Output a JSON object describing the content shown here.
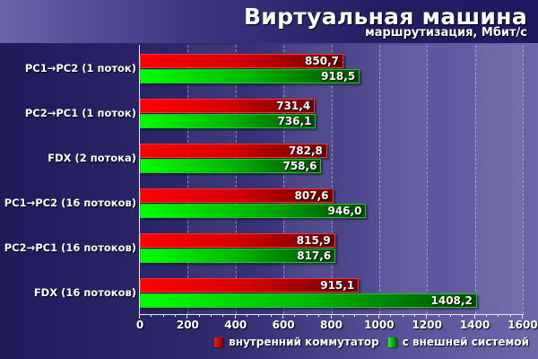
{
  "header": {
    "title": "Виртуальная машина",
    "subtitle": "маршрутизация, Мбит/с"
  },
  "colors": {
    "series_internal": "#e00000",
    "series_external": "#00d000",
    "background_dark": "#1f1a5a",
    "background_light": "#6e68aa"
  },
  "axis": {
    "ticks": [
      "0",
      "200",
      "400",
      "600",
      "800",
      "1000",
      "1200",
      "1400",
      "1600"
    ]
  },
  "categories": [
    {
      "label": "PC1→PC2 (1 поток)",
      "internal": "850,7",
      "external": "918,5"
    },
    {
      "label": "PC2→PC1 (1 поток)",
      "internal": "731,4",
      "external": "736,1"
    },
    {
      "label": "FDX (2 потока)",
      "internal": "782,8",
      "external": "758,6"
    },
    {
      "label": "PC1→PC2 (16 потоков)",
      "internal": "807,6",
      "external": "946,0"
    },
    {
      "label": "PC2→PC1 (16 потоков)",
      "internal": "815,9",
      "external": "817,6"
    },
    {
      "label": "FDX (16 потоков)",
      "internal": "915,1",
      "external": "1408,2"
    }
  ],
  "legend": {
    "internal": "внутренний коммутатор",
    "external": "с внешней системой"
  },
  "chart_data": {
    "type": "bar",
    "orientation": "horizontal",
    "title": "Виртуальная машина",
    "subtitle": "маршрутизация, Мбит/с",
    "xlabel": "",
    "ylabel": "",
    "xlim": [
      0,
      1600
    ],
    "xticks": [
      0,
      200,
      400,
      600,
      800,
      1000,
      1200,
      1400,
      1600
    ],
    "grid": "vertical dashed",
    "legend_position": "bottom-right",
    "categories": [
      "PC1→PC2 (1 поток)",
      "PC2→PC1 (1 поток)",
      "FDX (2 потока)",
      "PC1→PC2 (16 потоков)",
      "PC2→PC1 (16 потоков)",
      "FDX (16 потоков)"
    ],
    "series": [
      {
        "name": "внутренний коммутатор",
        "color": "#e00000",
        "values": [
          850.7,
          731.4,
          782.8,
          807.6,
          815.9,
          915.1
        ]
      },
      {
        "name": "с внешней системой",
        "color": "#00d000",
        "values": [
          918.5,
          736.1,
          758.6,
          946.0,
          817.6,
          1408.2
        ]
      }
    ]
  }
}
